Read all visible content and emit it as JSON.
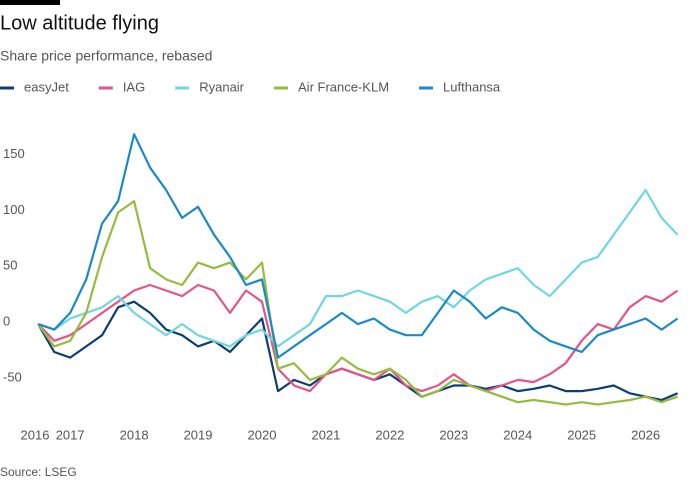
{
  "chart_data": {
    "type": "line",
    "title": "Low altitude flying",
    "subtitle": "Share price performance, rebased",
    "source": "Source: LSEG",
    "x": [
      2016.5,
      2016.75,
      2017,
      2017.25,
      2017.5,
      2017.75,
      2018,
      2018.25,
      2018.5,
      2018.75,
      2019,
      2019.25,
      2019.5,
      2019.75,
      2020,
      2020.25,
      2020.5,
      2020.75,
      2021,
      2021.25,
      2021.5,
      2021.75,
      2022,
      2022.25,
      2022.5,
      2022.75,
      2023,
      2023.25,
      2023.5,
      2023.75,
      2024,
      2024.25,
      2024.5,
      2024.75,
      2025,
      2025.25,
      2025.5,
      2025.75,
      2026,
      2026.25,
      2026.5
    ],
    "xlim": [
      2016.45,
      2026.6
    ],
    "xticks": [
      {
        "value": 2016.45,
        "label": "2016"
      },
      2017,
      2018,
      2019,
      2020,
      2021,
      2022,
      2023,
      2024,
      2025,
      2026
    ],
    "ylim": [
      -85,
      180
    ],
    "yticks": [
      -50,
      0,
      50,
      100,
      150
    ],
    "grid": false,
    "series": [
      {
        "name": "easyJet",
        "color": "#0d3f73",
        "values": [
          0,
          -25,
          -30,
          -20,
          -10,
          15,
          20,
          10,
          -5,
          -10,
          -20,
          -15,
          -25,
          -10,
          5,
          -60,
          -50,
          -55,
          -45,
          -40,
          -45,
          -50,
          -45,
          -55,
          -65,
          -60,
          -55,
          -55,
          -58,
          -55,
          -60,
          -58,
          -55,
          -60,
          -60,
          -58,
          -55,
          -62,
          -65,
          -68,
          -62
        ]
      },
      {
        "name": "IAG",
        "color": "#e5538b",
        "values": [
          0,
          -15,
          -10,
          0,
          10,
          20,
          30,
          35,
          30,
          25,
          35,
          30,
          10,
          30,
          20,
          -40,
          -55,
          -60,
          -45,
          -40,
          -45,
          -50,
          -40,
          -55,
          -60,
          -55,
          -45,
          -55,
          -60,
          -55,
          -50,
          -52,
          -45,
          -35,
          -15,
          0,
          -5,
          15,
          25,
          20,
          30
        ]
      },
      {
        "name": "Ryanair",
        "color": "#6fd6e4",
        "values": [
          0,
          -5,
          5,
          10,
          15,
          25,
          10,
          0,
          -10,
          0,
          -10,
          -15,
          -20,
          -10,
          -5,
          -20,
          -10,
          0,
          25,
          25,
          30,
          25,
          20,
          10,
          20,
          25,
          15,
          30,
          40,
          45,
          50,
          35,
          25,
          40,
          55,
          60,
          80,
          100,
          120,
          95,
          80
        ]
      },
      {
        "name": "Air France-KLM",
        "color": "#96bb3e",
        "values": [
          0,
          -20,
          -15,
          10,
          60,
          100,
          110,
          50,
          40,
          35,
          55,
          50,
          55,
          40,
          55,
          -40,
          -35,
          -50,
          -45,
          -30,
          -40,
          -45,
          -40,
          -50,
          -65,
          -60,
          -50,
          -55,
          -60,
          -65,
          -70,
          -68,
          -70,
          -72,
          -70,
          -72,
          -70,
          -68,
          -65,
          -70,
          -65
        ]
      },
      {
        "name": "Lufthansa",
        "color": "#1a8ac7",
        "values": [
          0,
          -5,
          10,
          40,
          90,
          110,
          170,
          140,
          120,
          95,
          105,
          80,
          60,
          35,
          40,
          -30,
          -20,
          -10,
          0,
          10,
          0,
          5,
          -5,
          -10,
          -10,
          10,
          30,
          20,
          5,
          15,
          10,
          -5,
          -15,
          -20,
          -25,
          -10,
          -5,
          0,
          5,
          -5,
          5
        ]
      }
    ]
  }
}
